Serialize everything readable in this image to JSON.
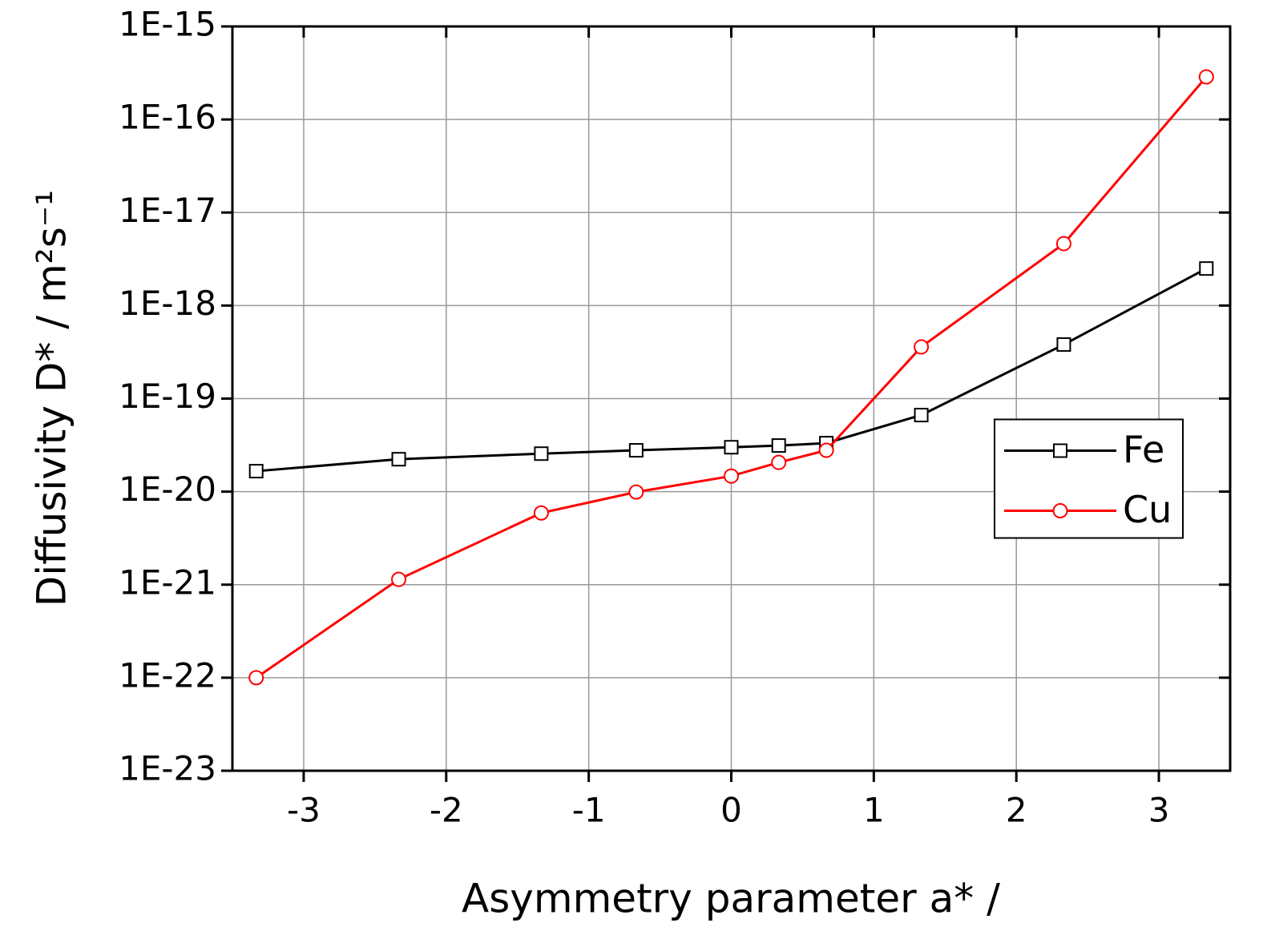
{
  "chart_data": {
    "type": "line",
    "xlabel": "Asymmetry parameter a* /",
    "ylabel": "Diffusivity D* / m²s⁻¹",
    "x": [
      -3.333,
      -2.333,
      -1.333,
      -0.667,
      0,
      0.333,
      0.667,
      1.333,
      2.333,
      3.333
    ],
    "series": [
      {
        "name": "Fe",
        "color": "#000000",
        "marker": "square",
        "values": [
          1.66e-20,
          2.23e-20,
          2.56e-20,
          2.78e-20,
          3e-20,
          3.13e-20,
          3.32e-20,
          6.65e-20,
          3.81e-19,
          2.5e-18
        ]
      },
      {
        "name": "Cu",
        "color": "#ff0000",
        "marker": "circle",
        "values": [
          1e-22,
          1.14e-21,
          5.9e-21,
          9.9e-21,
          1.47e-20,
          2.06e-20,
          2.78e-20,
          3.59e-19,
          4.63e-18,
          2.87e-16
        ]
      }
    ],
    "xlim": [
      -3.5,
      3.5
    ],
    "xticks": [
      -3,
      -2,
      -1,
      0,
      1,
      2,
      3
    ],
    "ylim": [
      1e-23,
      1e-15
    ],
    "yticks": [
      {
        "value": 1e-23,
        "label": "1E-23"
      },
      {
        "value": 1e-22,
        "label": "1E-22"
      },
      {
        "value": 1e-21,
        "label": "1E-21"
      },
      {
        "value": 1e-20,
        "label": "1E-20"
      },
      {
        "value": 1e-19,
        "label": "1E-19"
      },
      {
        "value": 1e-18,
        "label": "1E-18"
      },
      {
        "value": 1e-17,
        "label": "1E-17"
      },
      {
        "value": 1e-16,
        "label": "1E-16"
      },
      {
        "value": 1e-15,
        "label": "1E-15"
      }
    ],
    "ylog": true,
    "grid": true,
    "legend": "center right"
  }
}
